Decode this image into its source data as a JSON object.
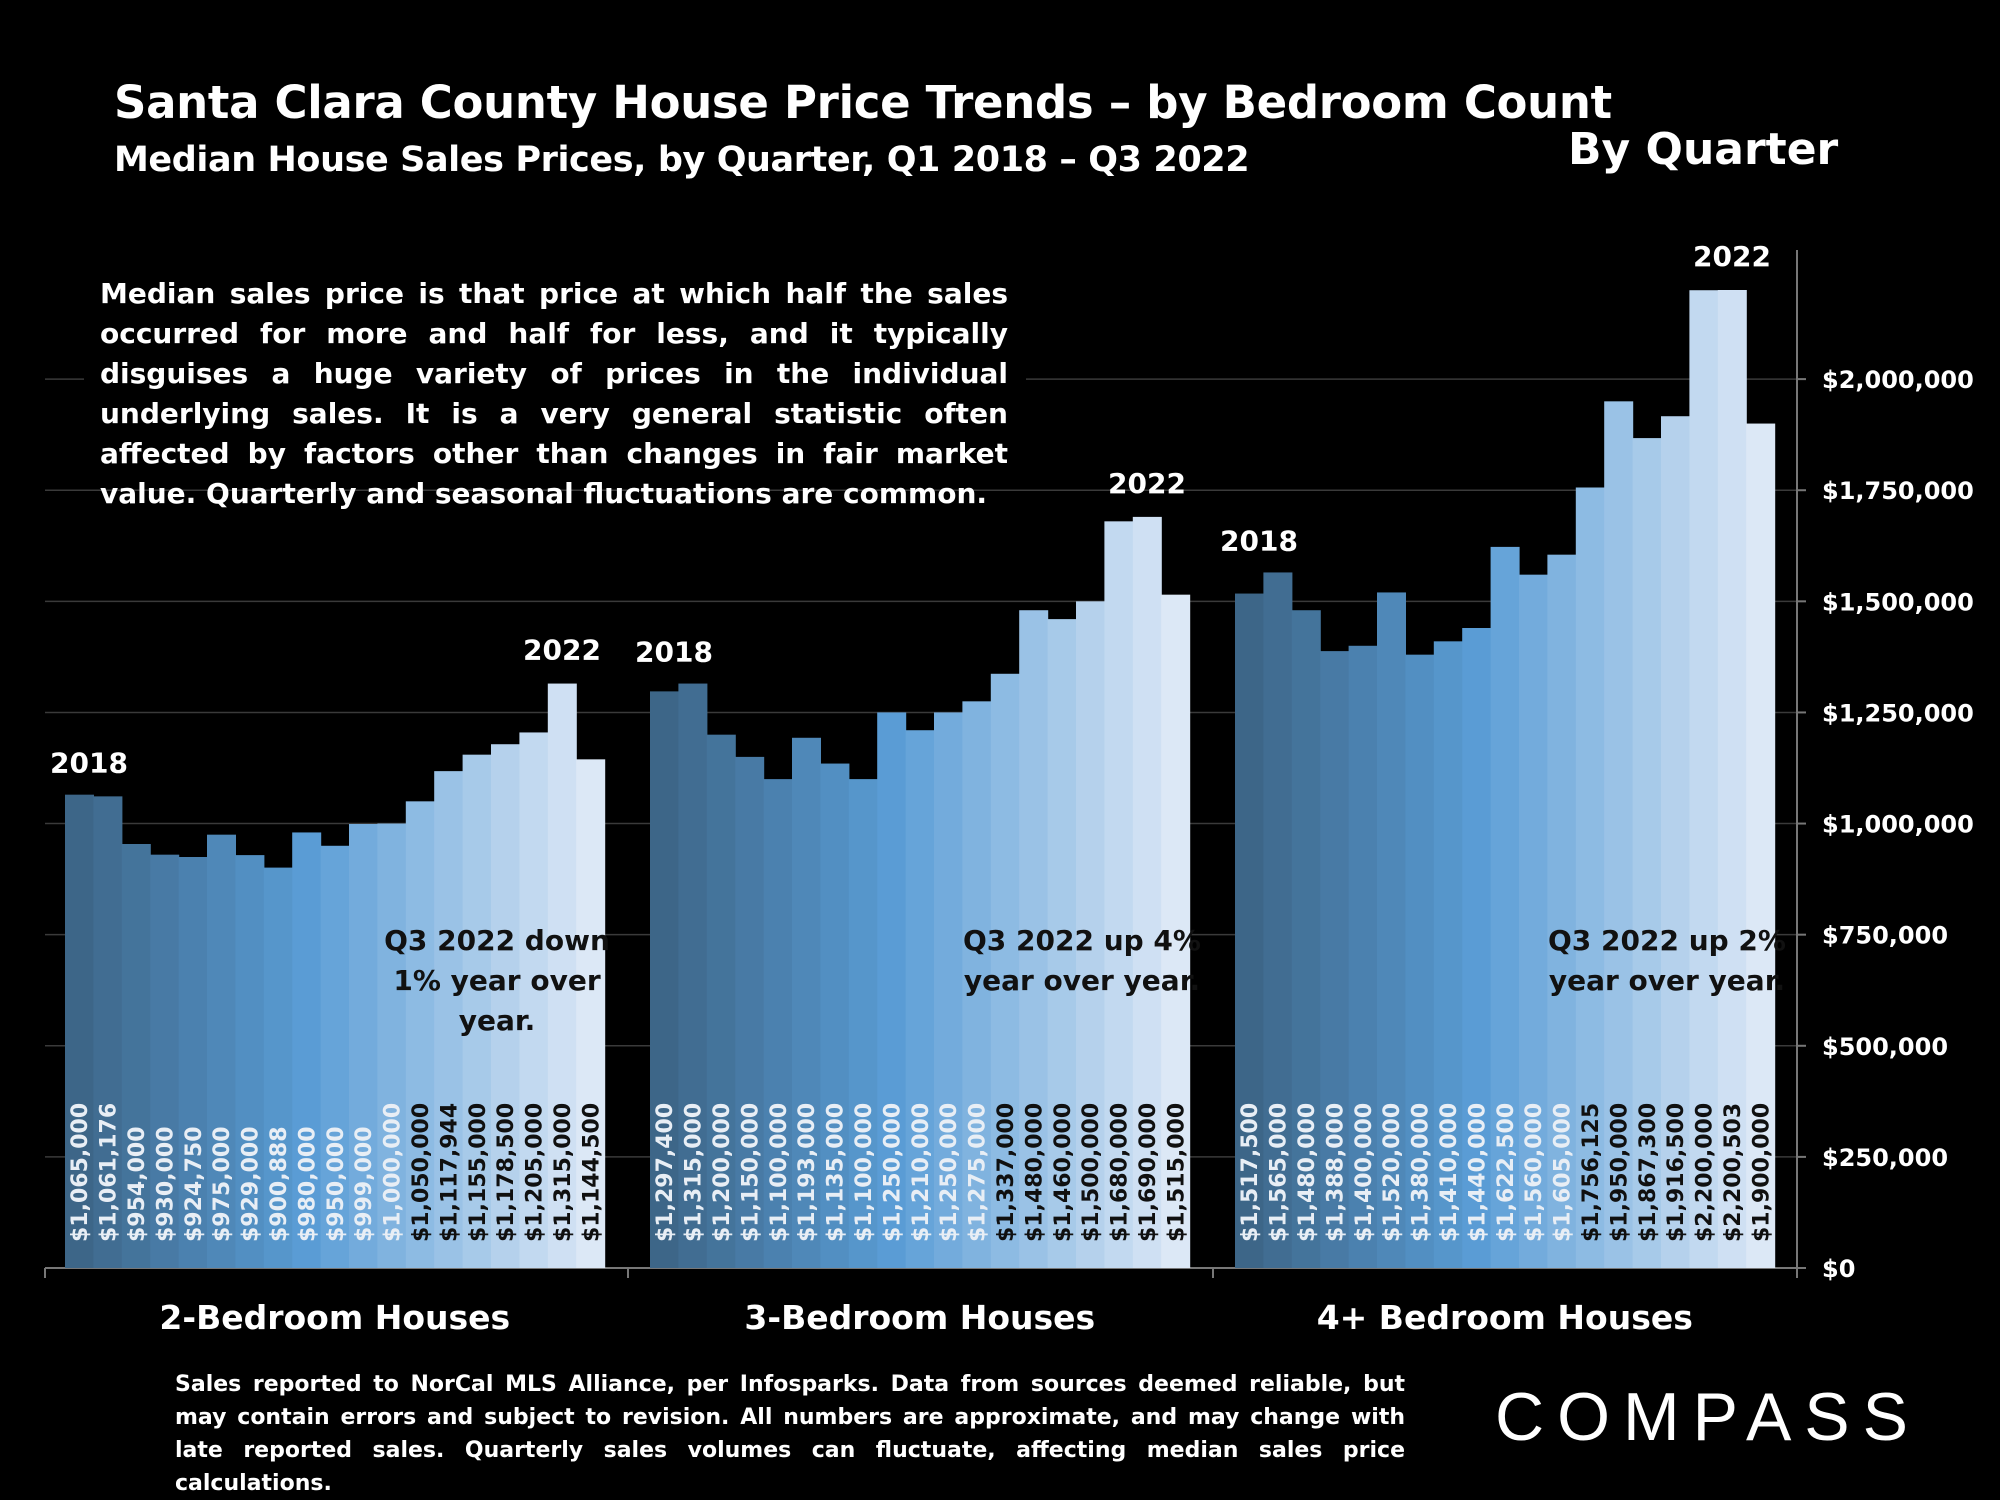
{
  "title": "Santa Clara County House Price Trends – by Bedroom Count",
  "subtitle": "Median House Sales Prices, by Quarter, Q1 2018 – Q3 2022",
  "by_quarter_label": "By Quarter",
  "note": "Median sales price is that price at which half the sales occurred for more and half for less, and it typically disguises a huge variety of prices in the individual underlying sales. It is a very general statistic often affected by factors other than changes in fair market value. Quarterly and seasonal fluctuations are common.",
  "footnote": "Sales reported to NorCal MLS Alliance, per Infosparks. Data from sources deemed reliable, but may contain errors and subject to revision. All numbers are approximate, and may change with late reported sales. Quarterly sales volumes can fluctuate, affecting median sales price calculations.",
  "brand": "COMPASS",
  "colors": {
    "background": "#000000",
    "bar_gradient": [
      "#3d6688",
      "#5a9dd6",
      "#dce8f6"
    ],
    "gridline": "#3a3a3a",
    "text": "#ffffff"
  },
  "chart_data": {
    "type": "bar",
    "ylim": [
      0,
      2250000
    ],
    "y_ticks": [
      "$0",
      "$250,000",
      "$500,000",
      "$750,000",
      "$1,000,000",
      "$1,250,000",
      "$1,500,000",
      "$1,750,000",
      "$2,000,000"
    ],
    "y_tick_values": [
      0,
      250000,
      500000,
      750000,
      1000000,
      1250000,
      1500000,
      1750000,
      2000000
    ],
    "grid": true,
    "groups": [
      {
        "name": "2-Bedroom Houses",
        "start_label": "2018",
        "end_label": "2022",
        "annotation": [
          "Q3 2022 down",
          "1% year over",
          "year."
        ],
        "values": [
          1065000,
          1061176,
          954000,
          930000,
          924750,
          975000,
          929000,
          900888,
          980000,
          950000,
          999000,
          1000000,
          1050000,
          1117944,
          1155000,
          1178500,
          1205000,
          1315000,
          1144500
        ],
        "value_labels": [
          "$1,065,000",
          "$1,061,176",
          "$954,000",
          "$930,000",
          "$924,750",
          "$975,000",
          "$929,000",
          "$900,888",
          "$980,000",
          "$950,000",
          "$999,000",
          "$1,000,000",
          "$1,050,000",
          "$1,117,944",
          "$1,155,000",
          "$1,178,500",
          "$1,205,000",
          "$1,315,000",
          "$1,144,500"
        ]
      },
      {
        "name": "3-Bedroom Houses",
        "start_label": "2018",
        "end_label": "2022",
        "annotation": [
          "Q3 2022 up 4%",
          "year over year."
        ],
        "values": [
          1297400,
          1315000,
          1200000,
          1150000,
          1100000,
          1193000,
          1135000,
          1100000,
          1250000,
          1210000,
          1250000,
          1275000,
          1337000,
          1480000,
          1460000,
          1500000,
          1680000,
          1690000,
          1515000
        ],
        "value_labels": [
          "$1,297,400",
          "$1,315,000",
          "$1,200,000",
          "$1,150,000",
          "$1,100,000",
          "$1,193,000",
          "$1,135,000",
          "$1,100,000",
          "$1,250,000",
          "$1,210,000",
          "$1,250,000",
          "$1,275,000",
          "$1,337,000",
          "$1,480,000",
          "$1,460,000",
          "$1,500,000",
          "$1,680,000",
          "$1,690,000",
          "$1,515,000"
        ]
      },
      {
        "name": "4+ Bedroom Houses",
        "start_label": "2018",
        "end_label": "2022",
        "annotation": [
          "Q3 2022 up 2%",
          "year over year."
        ],
        "values": [
          1517500,
          1565000,
          1480000,
          1388000,
          1400000,
          1520000,
          1380000,
          1410000,
          1440000,
          1622500,
          1560000,
          1605000,
          1756125,
          1950000,
          1867300,
          1916500,
          2200000,
          2200503,
          1900000
        ],
        "value_labels": [
          "$1,517,500",
          "$1,565,000",
          "$1,480,000",
          "$1,388,000",
          "$1,400,000",
          "$1,520,000",
          "$1,380,000",
          "$1,410,000",
          "$1,440,000",
          "$1,622,500",
          "$1,560,000",
          "$1,605,000",
          "$1,756,125",
          "$1,950,000",
          "$1,867,300",
          "$1,916,500",
          "$2,200,000",
          "$2,200,503",
          "$1,900,000"
        ]
      }
    ]
  }
}
